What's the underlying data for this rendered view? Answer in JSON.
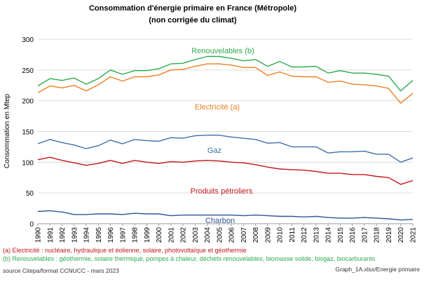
{
  "header": {
    "title": "Consommation d'énergie primaire en France (Métropole)",
    "subtitle": "(non corrigée du climat)"
  },
  "notes": {
    "a": "(a) Electricité : nucléaire, hydraulique et éolienne, solaire, photovoltaïque et géothermie",
    "b": "(b) Renouvelables : géothermie, solaire thermique, pompes à chaleur, déchets renouvelables, biomasse solide, biogaz, biocarburants",
    "source": "source Citepa/format CCNUCC - mars 2023",
    "file": "Graph_1A.xlsx/Energie primaire"
  },
  "chart_data": {
    "type": "line",
    "title": "Consommation d'énergie primaire en France (Métropole)",
    "subtitle": "(non corrigée du climat)",
    "ylabel": "Consommation en Mtep",
    "xlabel": "",
    "ylim": [
      0,
      300
    ],
    "yticks": [
      0,
      50,
      100,
      150,
      200,
      250,
      300
    ],
    "grid": true,
    "legend": "inline labels",
    "x": [
      "1990",
      "1991",
      "1992",
      "1993",
      "1994",
      "1995",
      "1996",
      "1997",
      "1998",
      "1999",
      "2000",
      "2001",
      "2002",
      "2003",
      "2004",
      "2005",
      "2006",
      "2007",
      "2008",
      "2009",
      "2010",
      "2011",
      "2012",
      "2013",
      "2014",
      "2015",
      "2016",
      "2017",
      "2018",
      "2019",
      "2020",
      "2021"
    ],
    "series": [
      {
        "name": "Renouvelables (b)",
        "color": "#2eaa4f",
        "values": [
          224,
          236,
          233,
          237,
          227,
          236,
          250,
          243,
          249,
          249,
          252,
          260,
          261,
          267,
          272,
          272,
          269,
          265,
          267,
          256,
          264,
          255,
          255,
          256,
          245,
          249,
          245,
          245,
          243,
          240,
          216,
          233
        ]
      },
      {
        "name": "Electricité (a)",
        "color": "#f07f22",
        "values": [
          213,
          224,
          221,
          225,
          216,
          226,
          239,
          232,
          239,
          239,
          242,
          250,
          251,
          256,
          260,
          260,
          258,
          254,
          254,
          241,
          247,
          240,
          239,
          239,
          230,
          232,
          227,
          226,
          224,
          220,
          196,
          212
        ]
      },
      {
        "name": "Gaz",
        "color": "#3f6fa8",
        "values": [
          130,
          137,
          132,
          128,
          122,
          127,
          136,
          130,
          137,
          135,
          134,
          140,
          139,
          143,
          144,
          144,
          141,
          139,
          137,
          131,
          132,
          125,
          125,
          125,
          115,
          117,
          117,
          118,
          113,
          113,
          100,
          107
        ]
      },
      {
        "name": "Produits pétroliers",
        "color": "#c0171d",
        "values": [
          104,
          108,
          103,
          99,
          95,
          98,
          103,
          98,
          103,
          100,
          98,
          101,
          100,
          102,
          103,
          102,
          100,
          99,
          96,
          92,
          89,
          88,
          87,
          85,
          82,
          82,
          80,
          80,
          77,
          75,
          64,
          70
        ]
      },
      {
        "name": "Charbon",
        "color": "#2f5597",
        "values": [
          20,
          21,
          19,
          15,
          15,
          16,
          16,
          15,
          17,
          16,
          16,
          13,
          14,
          14,
          14,
          14,
          14,
          13,
          14,
          13,
          12,
          12,
          11,
          12,
          10,
          9,
          9,
          10,
          9,
          8,
          6,
          7
        ]
      }
    ],
    "labels": {
      "renouvelables": "Renouvelables (b)",
      "electricite": "Electricité (a)",
      "gaz": "Gaz",
      "petrole": "Produits pétroliers",
      "charbon": "Charbon"
    }
  }
}
